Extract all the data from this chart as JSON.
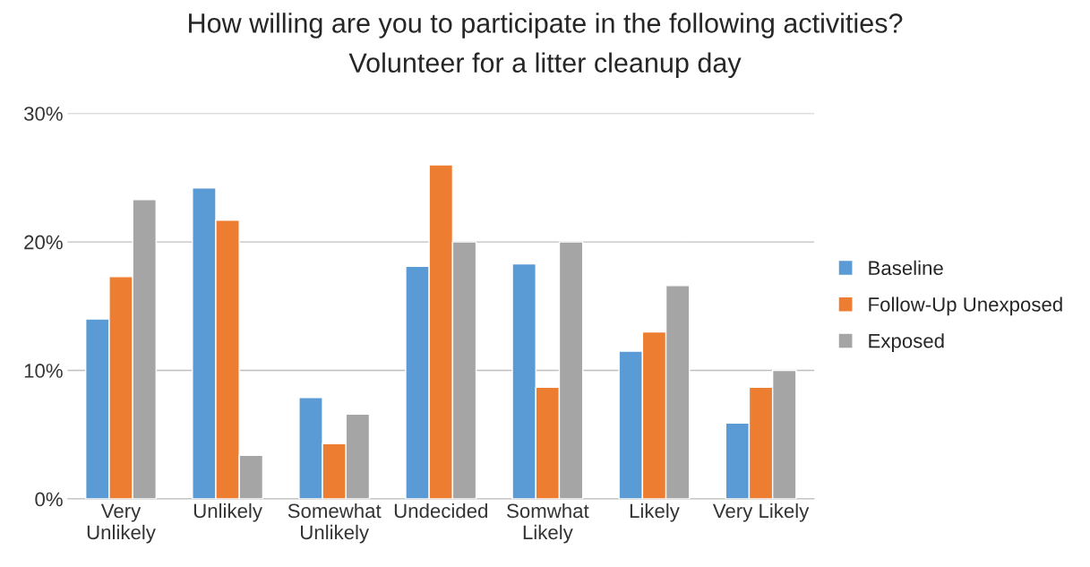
{
  "chart_data": {
    "type": "bar",
    "title": "How willing are you to participate in the following activities?",
    "subtitle": "Volunteer for a litter cleanup day",
    "categories": [
      "Very Unlikely",
      "Unlikely",
      "Somewhat Unlikely",
      "Undecided",
      "Somwhat Likely",
      "Likely",
      "Very Likely"
    ],
    "series": [
      {
        "name": "Baseline",
        "color": "#5b9bd5",
        "values": [
          14.0,
          24.2,
          7.9,
          18.1,
          18.3,
          11.5,
          5.9
        ]
      },
      {
        "name": "Follow-Up Unexposed",
        "color": "#ed7d31",
        "values": [
          17.3,
          21.7,
          4.3,
          26.0,
          8.7,
          13.0,
          8.7
        ]
      },
      {
        "name": "Exposed",
        "color": "#a5a5a5",
        "values": [
          23.3,
          3.4,
          6.6,
          20.0,
          20.0,
          16.6,
          10.0
        ]
      }
    ],
    "ylim": [
      0,
      30
    ],
    "yticks": [
      {
        "value": 0,
        "label": "0%"
      },
      {
        "value": 10,
        "label": "10%"
      },
      {
        "value": 20,
        "label": "20%"
      },
      {
        "value": 30,
        "label": "30%"
      }
    ],
    "grid": "y",
    "legend": "right"
  }
}
